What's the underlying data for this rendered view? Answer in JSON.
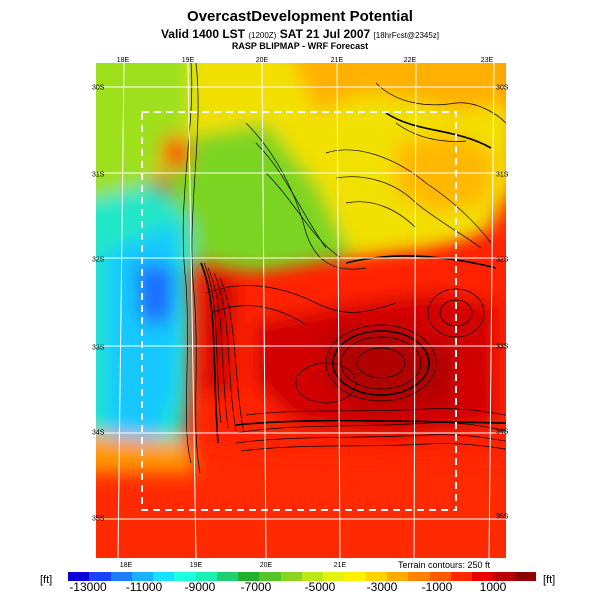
{
  "header": {
    "title": "OvercastDevelopment Potential",
    "valid_line_a": "Valid 1400 LST",
    "valid_line_b": "(1200Z)",
    "valid_line_c": "SAT 21 Jul 2007",
    "valid_line_d": "[18hrFcst@2345z]",
    "subtitle": "RASP BLIPMAP - WRF Forecast"
  },
  "map": {
    "top_ticks": [
      "18E",
      "19E",
      "20E",
      "21E",
      "22E",
      "23E"
    ],
    "bottom_ticks": [
      "18E",
      "19E",
      "20E",
      "21E"
    ],
    "left_ticks": [
      "30S",
      "31S",
      "32S",
      "33S",
      "34S",
      "35S"
    ],
    "right_ticks": [
      "30S",
      "31S",
      "32S",
      "33S",
      "34S",
      "35S"
    ],
    "terrain_note": "Terrain contours: 250 ft"
  },
  "legend": {
    "unit_left": "[ft]",
    "unit_right": "[ft]",
    "labels": [
      "-13000",
      "-11000",
      "-9000",
      "-7000",
      "-5000",
      "-3000",
      "-1000",
      "1000"
    ],
    "colors": [
      "#0a00d6",
      "#1f40ff",
      "#1f7cff",
      "#18b3ff",
      "#19e0ff",
      "#1fffe0",
      "#1cf0b0",
      "#1cd070",
      "#20b030",
      "#58c228",
      "#8ad61e",
      "#bde61c",
      "#e6f014",
      "#fff000",
      "#ffd200",
      "#ffaa00",
      "#ff8200",
      "#ff5a00",
      "#ff2a00",
      "#e60000",
      "#b80000",
      "#8c0000"
    ]
  }
}
